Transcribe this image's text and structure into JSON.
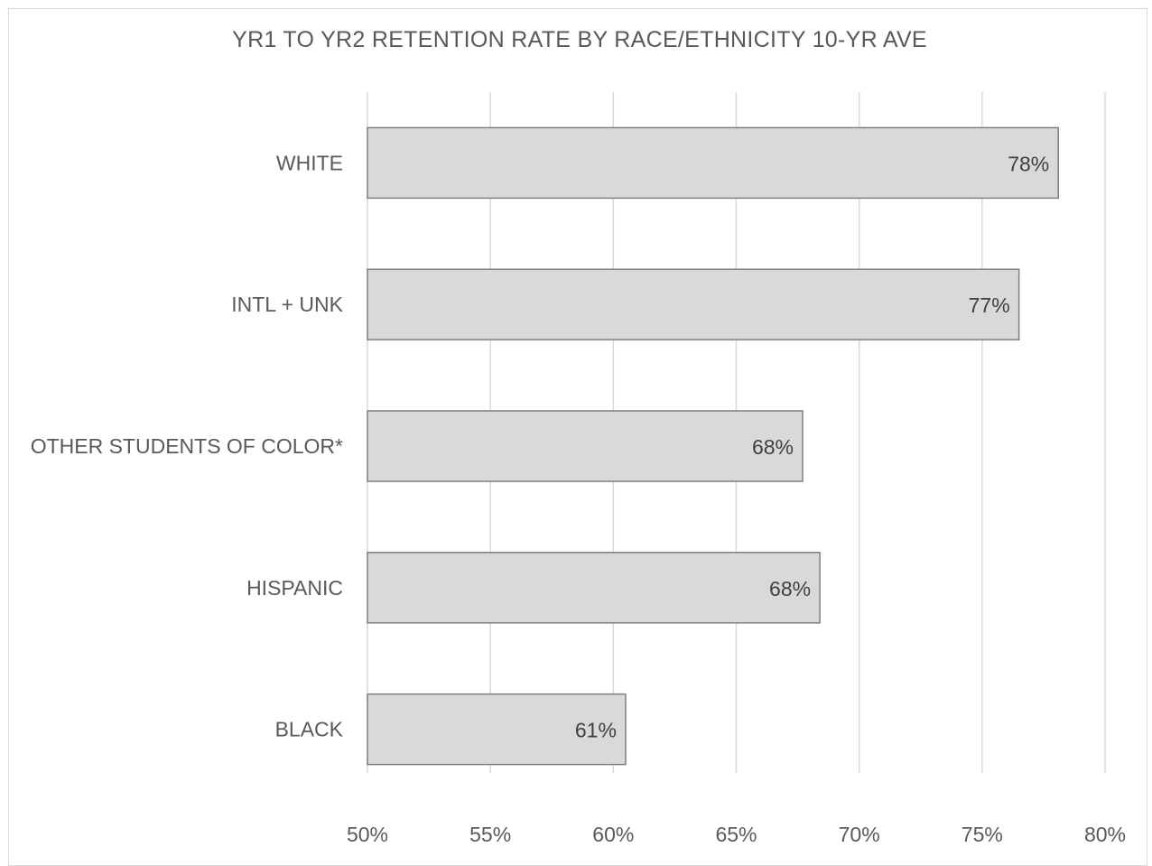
{
  "chart_data": {
    "type": "bar",
    "orientation": "horizontal",
    "title": "YR1 TO YR2 RETENTION RATE BY RACE/ETHNICITY 10-YR AVE",
    "xlabel": "",
    "ylabel": "",
    "categories": [
      "WHITE",
      "INTL + UNK",
      "OTHER STUDENTS OF COLOR*",
      "HISPANIC",
      "BLACK"
    ],
    "values": [
      78.1,
      76.5,
      67.7,
      68.4,
      60.5
    ],
    "data_labels": [
      "78%",
      "77%",
      "68%",
      "68%",
      "61%"
    ],
    "xlim": [
      50,
      80
    ],
    "ticks": [
      50,
      55,
      60,
      65,
      70,
      75,
      80
    ],
    "tick_labels": [
      "50%",
      "55%",
      "60%",
      "65%",
      "70%",
      "75%",
      "80%"
    ],
    "grid": true,
    "legend": "none",
    "colors": {
      "bar_fill": "#d9d9d9",
      "bar_stroke": "#7f7f7f",
      "grid": "#d9d9d9",
      "text": "#595959",
      "data_label": "#404040"
    }
  }
}
